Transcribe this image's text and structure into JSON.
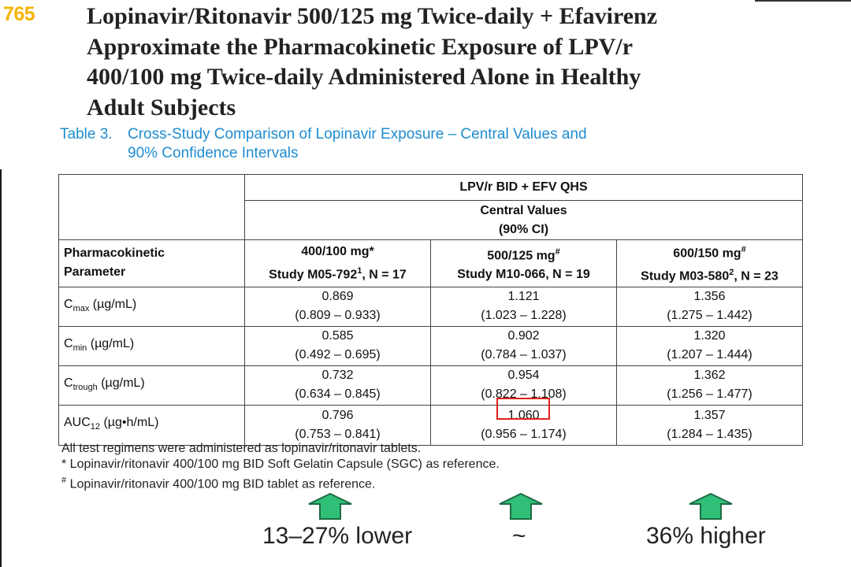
{
  "slide": {
    "number": "765",
    "title_lines": [
      "Lopinavir/Ritonavir 500/125 mg Twice-daily + Efavirenz",
      "Approximate the Pharmacokinetic Exposure of LPV/r",
      "400/100 mg Twice-daily Administered Alone in Healthy",
      "Adult Subjects"
    ]
  },
  "caption": {
    "prefix": "Table 3.",
    "line1": "Cross-Study Comparison of Lopinavir Exposure – Central Values and",
    "line2": "90% Confidence Intervals"
  },
  "table": {
    "group_header": "LPV/r BID + EFV QHS",
    "sub_header_line1": "Central Values",
    "sub_header_line2": "(90% CI)",
    "param_header_line1": "Pharmacokinetic",
    "param_header_line2": "Parameter",
    "columns": [
      {
        "dose": "400/100 mg*",
        "study": "Study M05-792",
        "study_sup": "1",
        "n": ", N = 17"
      },
      {
        "dose": "500/125 mg",
        "dose_sup": "#",
        "study": "Study M10-066, N = 19"
      },
      {
        "dose": "600/150 mg",
        "dose_sup": "#",
        "study": "Study M03-580",
        "study_sup": "2",
        "n": ", N = 23"
      }
    ],
    "rows": [
      {
        "param": "C",
        "param_sub": "max",
        "unit": " (µg/mL)",
        "values": [
          [
            "0.869",
            "(0.809 – 0.933)"
          ],
          [
            "1.121",
            "(1.023 – 1.228)"
          ],
          [
            "1.356",
            "(1.275 – 1.442)"
          ]
        ]
      },
      {
        "param": "C",
        "param_sub": "min",
        "unit": " (µg/mL)",
        "values": [
          [
            "0.585",
            "(0.492 – 0.695)"
          ],
          [
            "0.902",
            "(0.784 – 1.037)"
          ],
          [
            "1.320",
            "(1.207 – 1.444)"
          ]
        ]
      },
      {
        "param": "C",
        "param_sub": "trough",
        "unit": " (µg/mL)",
        "values": [
          [
            "0.732",
            "(0.634 – 0.845)"
          ],
          [
            "0.954",
            "(0.822 – 1.108)"
          ],
          [
            "1.362",
            "(1.256 – 1.477)"
          ]
        ]
      },
      {
        "param": "AUC",
        "param_sub": "12",
        "unit": " (µg•h/mL)",
        "values": [
          [
            "0.796",
            "(0.753 – 0.841)"
          ],
          [
            "1.060",
            "(0.956 – 1.174)"
          ],
          [
            "1.357",
            "(1.284 – 1.435)"
          ]
        ]
      }
    ]
  },
  "footnotes": {
    "line1": "All test regimens were administered as lopinavir/ritonavir tablets.",
    "line2": "* Lopinavir/ritonavir 400/100 mg BID Soft Gelatin Capsule (SGC) as reference.",
    "line3_sup": "#",
    "line3": " Lopinavir/ritonavir 400/100 mg BID tablet as reference."
  },
  "comparisons": [
    "13–27% lower",
    "~",
    "36% higher"
  ],
  "colors": {
    "slide_number": "#f5b400",
    "caption": "#1e8dd0",
    "highlight_box": "#e0221b",
    "arrow_fill": "#2fbf77",
    "arrow_stroke": "#1f6b45"
  },
  "icons": [
    "arrow-up-icon",
    "arrow-up-icon",
    "arrow-up-icon"
  ]
}
